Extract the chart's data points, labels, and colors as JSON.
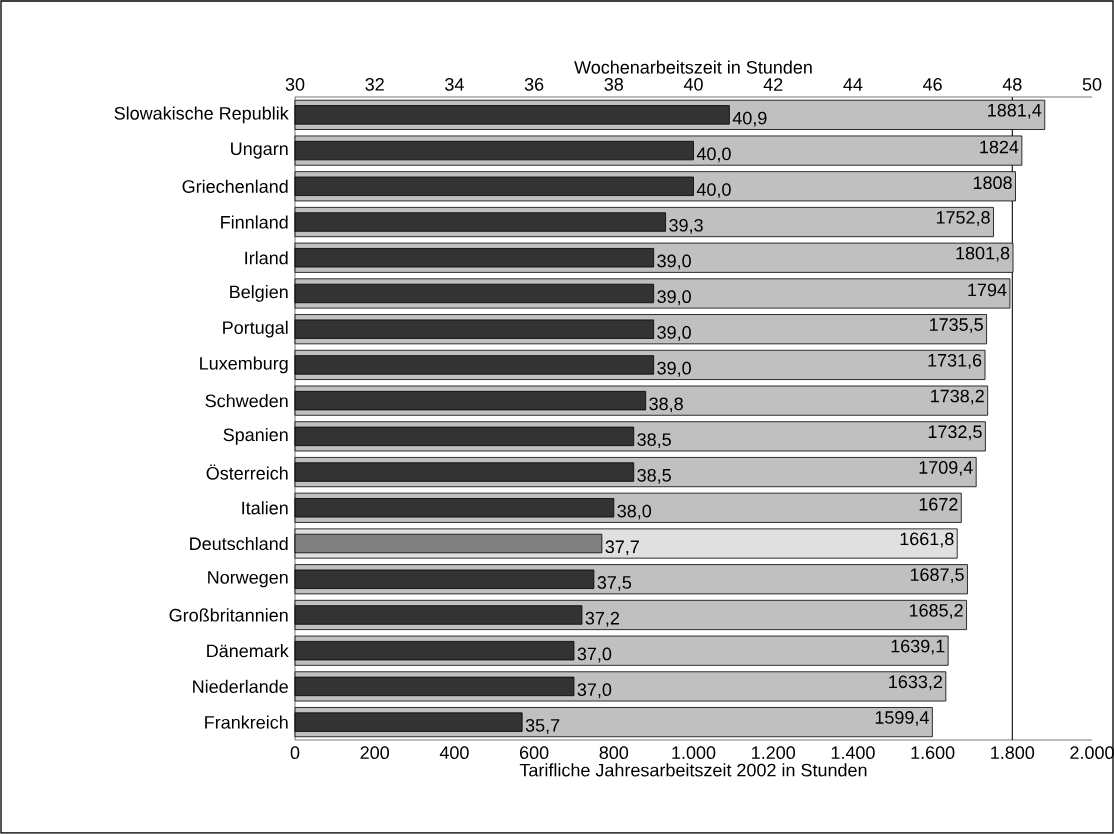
{
  "chart_data": {
    "type": "bar",
    "orientation": "horizontal",
    "categories": [
      "Slowakische Republik",
      "Ungarn",
      "Griechenland",
      "Finnland",
      "Irland",
      "Belgien",
      "Portugal",
      "Luxemburg",
      "Schweden",
      "Spanien",
      "Österreich",
      "Italien",
      "Deutschland",
      "Norwegen",
      "Großbritannien",
      "Dänemark",
      "Niederlande",
      "Frankreich"
    ],
    "series": [
      {
        "colors": [
          "#c0c0c0",
          "#c0c0c0",
          "#c0c0c0",
          "#c0c0c0",
          "#c0c0c0",
          "#c0c0c0",
          "#c0c0c0",
          "#c0c0c0",
          "#c0c0c0",
          "#c0c0c0",
          "#c0c0c0",
          "#c0c0c0",
          "#e0e0e0",
          "#c0c0c0",
          "#c0c0c0",
          "#c0c0c0",
          "#c0c0c0",
          "#c0c0c0"
        ],
        "values": [
          1881.4,
          1824,
          1808,
          1752.8,
          1801.8,
          1794,
          1735.5,
          1731.6,
          1738.2,
          1732.5,
          1709.4,
          1672,
          1661.8,
          1687.5,
          1685.2,
          1639.1,
          1633.2,
          1599.4
        ],
        "value_labels": [
          "1881,4",
          "1824",
          "1808",
          "1752,8",
          "1801,8",
          "1794",
          "1735,5",
          "1731,6",
          "1738,2",
          "1732,5",
          "1709,4",
          "1672",
          "1661,8",
          "1687,5",
          "1685,2",
          "1639,1",
          "1633,2",
          "1599,4"
        ]
      },
      {
        "axis": "x2",
        "colors": [
          "#333333",
          "#333333",
          "#333333",
          "#333333",
          "#333333",
          "#333333",
          "#333333",
          "#333333",
          "#333333",
          "#333333",
          "#333333",
          "#333333",
          "#808080",
          "#333333",
          "#333333",
          "#333333",
          "#333333",
          "#333333"
        ],
        "values": [
          40.9,
          40.0,
          40.0,
          39.3,
          39.0,
          39.0,
          39.0,
          39.0,
          38.8,
          38.5,
          38.5,
          38.0,
          37.7,
          37.5,
          37.2,
          37.0,
          37.0,
          35.7
        ],
        "value_labels": [
          "40,9",
          "40,0",
          "40,0",
          "39,3",
          "39,0",
          "39,0",
          "39,0",
          "39,0",
          "38,8",
          "38,5",
          "38,5",
          "38,0",
          "37,7",
          "37,5",
          "37,2",
          "37,0",
          "37,0",
          "35,7"
        ]
      }
    ],
    "xlim": [
      0,
      2000
    ],
    "xticks": [
      0,
      200,
      400,
      600,
      800,
      {
        "value": 1000,
        "label": "1.000"
      },
      {
        "value": 1200,
        "label": "1.200"
      },
      {
        "value": 1400,
        "label": "1.400"
      },
      {
        "value": 1600,
        "label": "1.600"
      },
      {
        "value": 1800,
        "label": "1.800"
      },
      {
        "value": 2000,
        "label": "2.000"
      }
    ],
    "x2lim": [
      30,
      50
    ],
    "x2ticks": [
      30,
      32,
      34,
      36,
      38,
      40,
      42,
      44,
      46,
      48,
      50
    ],
    "xlabel": "Tarifliche Jahresarbeitszeit 2002 in Stunden",
    "x2label": "Wochenarbeitszeit in Stunden",
    "ref_lines": [
      {
        "axis": "x",
        "value": 1800,
        "color": "#000000"
      }
    ]
  }
}
